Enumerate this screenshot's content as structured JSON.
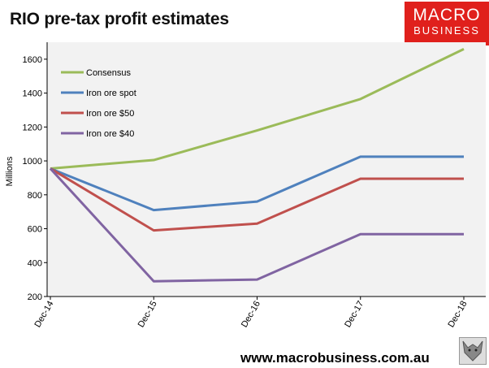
{
  "title": "RIO pre-tax profit estimates",
  "logo": {
    "line1": "MACRO",
    "line2": "BUSINESS",
    "color": "#e0201c"
  },
  "footer": "www.macrobusiness.com.au",
  "chart_data": {
    "type": "line",
    "title": "RIO pre-tax profit estimates",
    "xlabel": "",
    "ylabel": "Millions",
    "ylim": [
      200,
      1700
    ],
    "yticks": [
      200,
      400,
      600,
      800,
      1000,
      1200,
      1400,
      1600
    ],
    "categories": [
      "Dec-14",
      "Dec-15",
      "Dec-16",
      "Dec-17",
      "Dec-18"
    ],
    "legend_position": "top-left",
    "series": [
      {
        "name": "Consensus",
        "color": "#9bbb59",
        "values": [
          955,
          1005,
          1180,
          1365,
          1660
        ]
      },
      {
        "name": "Iron ore spot",
        "color": "#4f81bd",
        "values": [
          955,
          710,
          760,
          1025,
          1025
        ]
      },
      {
        "name": "Iron ore $50",
        "color": "#c0504d",
        "values": [
          955,
          590,
          630,
          895,
          895
        ]
      },
      {
        "name": "Iron ore $40",
        "color": "#8064a2",
        "values": [
          955,
          290,
          300,
          568,
          568
        ]
      }
    ]
  }
}
